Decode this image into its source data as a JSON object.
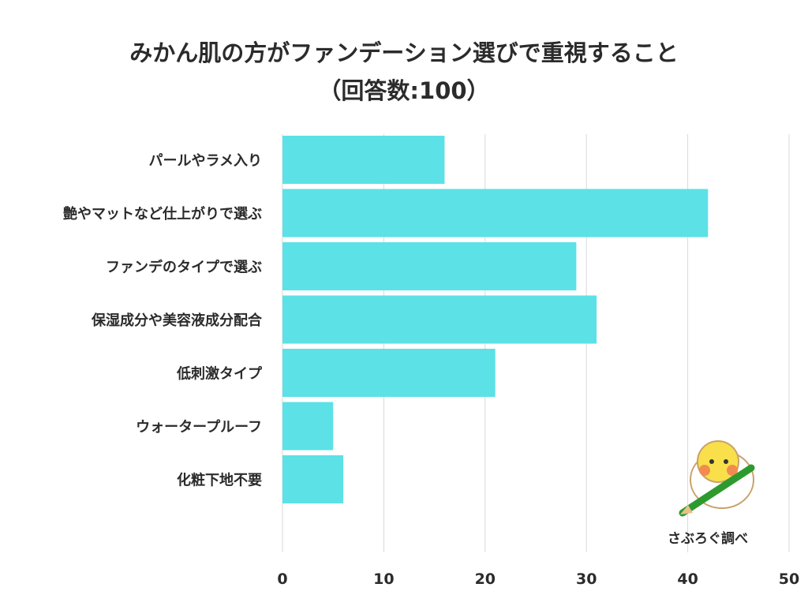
{
  "chart_data": {
    "type": "bar",
    "orientation": "horizontal",
    "title": "みかん肌の方がファンデーション選びで重視すること",
    "subtitle": "（回答数:100）",
    "categories": [
      "パールやラメ入り",
      "艶やマットなど仕上がりで選ぶ",
      "ファンデのタイプで選ぶ",
      "保湿成分や美容液成分配合",
      "低刺激タイプ",
      "ウォータープルーフ",
      "化粧下地不要"
    ],
    "values": [
      16,
      42,
      29,
      31,
      21,
      5,
      6
    ],
    "xlim": [
      0,
      50
    ],
    "xticks": [
      "0",
      "10",
      "20",
      "30",
      "40",
      "50"
    ],
    "grid": true,
    "bar_color": "#5ce1e6",
    "xlabel": "",
    "ylabel": ""
  },
  "logo": {
    "text": "さぶろぐ調べ",
    "icon": "bird-with-pencil-icon"
  }
}
